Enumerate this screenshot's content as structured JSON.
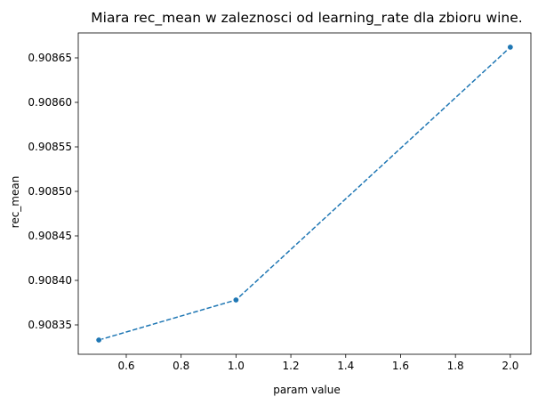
{
  "chart_data": {
    "type": "line",
    "title": "Miara rec_mean w zaleznosci od learning_rate dla zbioru wine.",
    "xlabel": "param value",
    "ylabel": "rec_mean",
    "x": [
      0.5,
      1.0,
      2.0
    ],
    "series": [
      {
        "values": [
          0.908333,
          0.908378,
          0.908662
        ],
        "color": "#1f77b4",
        "line_style": "dashed",
        "marker": "circle"
      }
    ],
    "xlim": [
      0.425,
      2.075
    ],
    "ylim": [
      0.908317,
      0.908678
    ],
    "x_ticks": [
      0.6,
      0.8,
      1.0,
      1.2,
      1.4,
      1.6,
      1.8,
      2.0
    ],
    "x_tick_labels": [
      "0.6",
      "0.8",
      "1.0",
      "1.2",
      "1.4",
      "1.6",
      "1.8",
      "2.0"
    ],
    "y_ticks": [
      0.90835,
      0.9084,
      0.90845,
      0.9085,
      0.90855,
      0.9086,
      0.90865
    ],
    "y_tick_labels": [
      "0.90835",
      "0.90840",
      "0.90845",
      "0.90850",
      "0.90855",
      "0.90860",
      "0.90865"
    ],
    "grid": false,
    "legend": "none"
  }
}
